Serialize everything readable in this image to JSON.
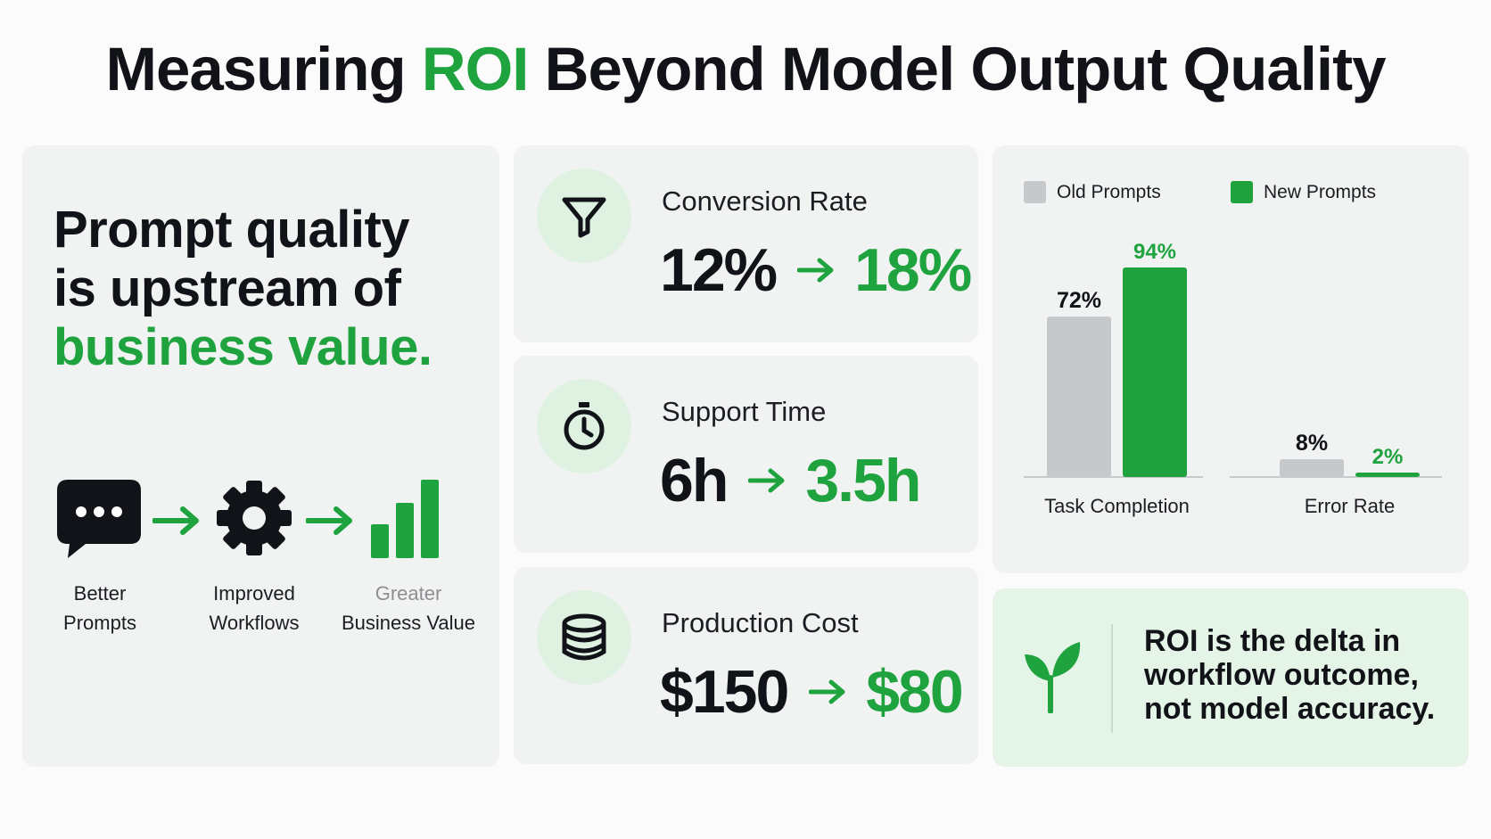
{
  "title": {
    "part1": "Measuring ",
    "accent": "ROI",
    "part2": " Beyond Model Output Quality"
  },
  "left_panel": {
    "headline_line1": "Prompt quality",
    "headline_line2": "is upstream of",
    "headline_line3": "business value.",
    "flow": [
      {
        "icon": "chat-bubble-icon",
        "label_line1": "Better",
        "label_line2": "Prompts"
      },
      {
        "icon": "gear-icon",
        "label_line1": "Improved",
        "label_line2": "Workflows"
      },
      {
        "icon": "bar-chart-icon",
        "label_line1": "Greater",
        "label_line2": "Business Value"
      }
    ]
  },
  "metrics": [
    {
      "icon": "funnel-icon",
      "label": "Conversion Rate",
      "old": "12%",
      "new": "18%"
    },
    {
      "icon": "stopwatch-icon",
      "label": "Support Time",
      "old": "6h",
      "new": "3.5h"
    },
    {
      "icon": "coins-stack-icon",
      "label": "Production Cost",
      "old": "$150",
      "new": "$80"
    }
  ],
  "chart_data": {
    "type": "bar",
    "categories": [
      "Task Completion",
      "Error Rate"
    ],
    "series": [
      {
        "name": "Old Prompts",
        "color": "#c6c8cc",
        "values": [
          72,
          8
        ],
        "labels": [
          "72%",
          "8%"
        ]
      },
      {
        "name": "New Prompts",
        "color": "#1fa33e",
        "values": [
          94,
          2
        ],
        "labels": [
          "94%",
          "2%"
        ]
      }
    ],
    "ylim": [
      0,
      100
    ],
    "legend": "top",
    "grid": false
  },
  "roi_callout": {
    "icon": "leaf-icon",
    "line1": "ROI is the delta in",
    "line2": "workflow outcome,",
    "line3": "not model accuracy."
  },
  "colors": {
    "accent": "#1fa33e",
    "text": "#111318",
    "muted": "#8e8f93",
    "card": "#f1f2f2",
    "callout": "#e4f4e6"
  }
}
